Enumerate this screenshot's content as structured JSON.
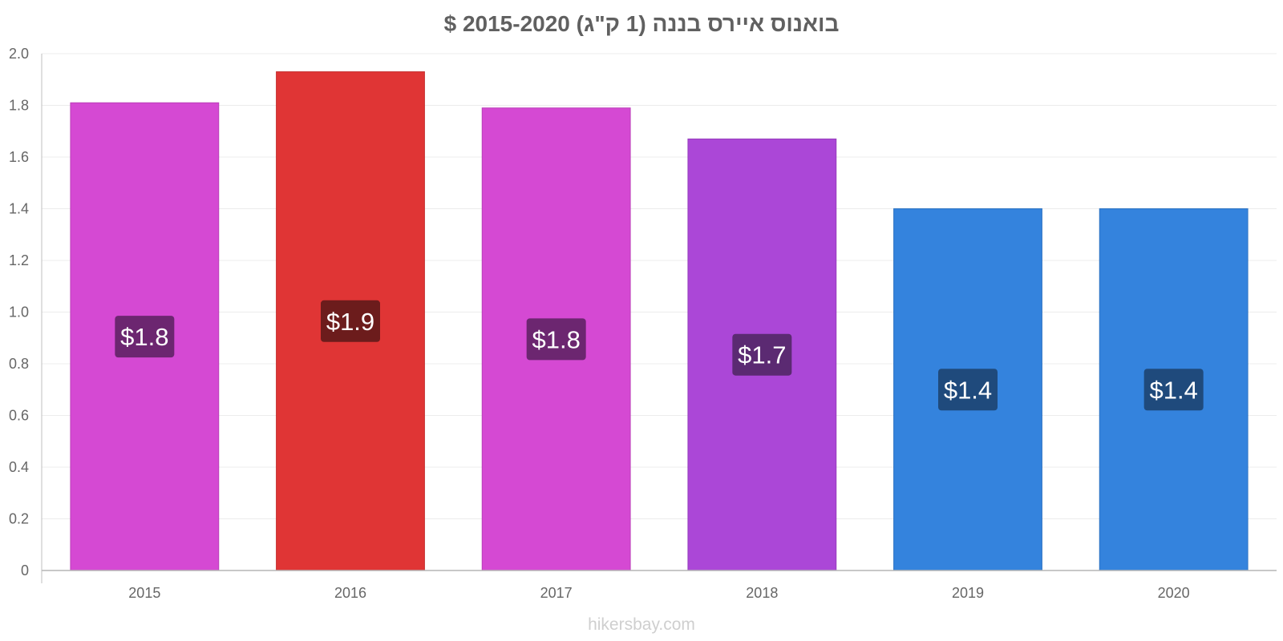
{
  "chart_data": {
    "type": "bar",
    "title": "בואנוס איירס בננה (1 ק\"ג) 2015-2020 $",
    "xlabel": "",
    "ylabel": "",
    "categories": [
      "2015",
      "2016",
      "2017",
      "2018",
      "2019",
      "2020"
    ],
    "values": [
      1.81,
      1.93,
      1.79,
      1.67,
      1.4,
      1.4
    ],
    "data_labels": [
      "$1.8",
      "$1.9",
      "$1.8",
      "$1.7",
      "$1.4",
      "$1.4"
    ],
    "bar_colors": [
      "#d549d3",
      "#e03535",
      "#d549d3",
      "#ab47d7",
      "#3483dd",
      "#3483dd"
    ],
    "label_box_colors": [
      "#6c2670",
      "#6c1c1c",
      "#6c2670",
      "#5b2a72",
      "#1f4a7c",
      "#1f4a7c"
    ],
    "ylim": [
      0,
      2.0
    ],
    "yticks": [
      0,
      0.2,
      0.4,
      0.6,
      0.8,
      1.0,
      1.2,
      1.4,
      1.6,
      1.8,
      2.0
    ],
    "ytick_labels": [
      "0",
      "0.2",
      "0.4",
      "0.6",
      "0.8",
      "1.0",
      "1.2",
      "1.4",
      "1.6",
      "1.8",
      "2.0"
    ],
    "grid": true,
    "legend": "none"
  },
  "watermark": "hikersbay.com"
}
